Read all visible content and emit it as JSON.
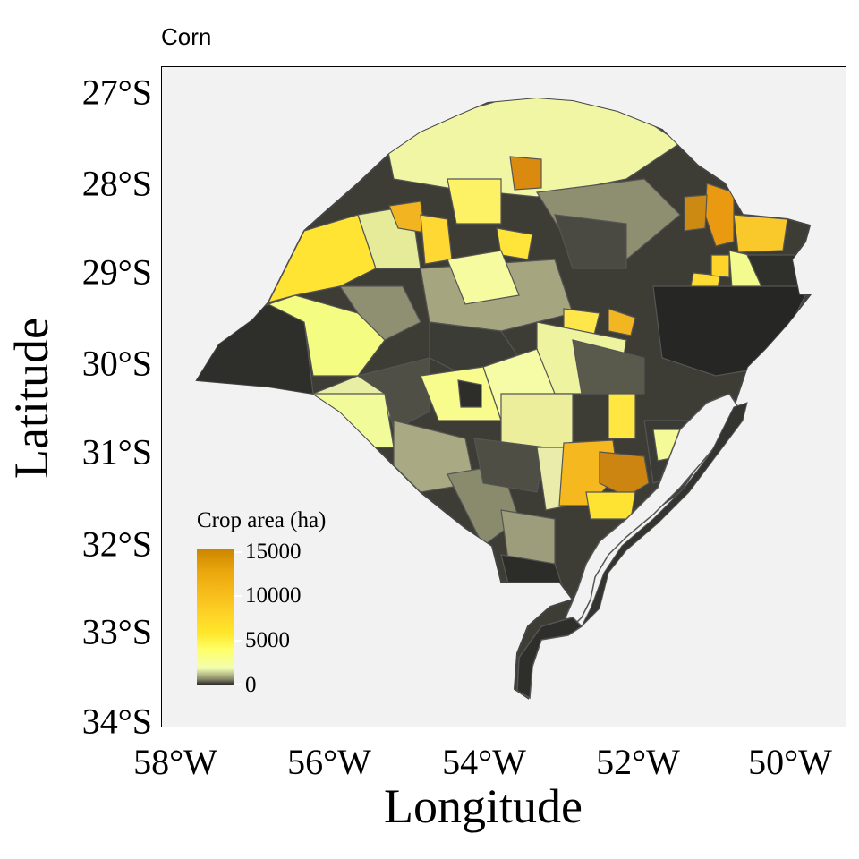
{
  "title": "Corn",
  "axes": {
    "x_label": "Longitude",
    "y_label": "Latitude",
    "x_ticks": [
      "58°W",
      "56°W",
      "54°W",
      "52°W",
      "50°W"
    ],
    "y_ticks": [
      "27°S",
      "28°S",
      "29°S",
      "30°S",
      "31°S",
      "32°S",
      "33°S",
      "34°S"
    ]
  },
  "legend": {
    "title": "Crop area (ha)",
    "labels": [
      "15000",
      "10000",
      "5000",
      "0"
    ]
  },
  "colors": {
    "panel_background": "#f2f2f2",
    "low": "#2b2b2b",
    "mid_low": "#f2ffb0",
    "mid": "#ffe62a",
    "high": "#cc8400",
    "borders": "#555555"
  }
}
